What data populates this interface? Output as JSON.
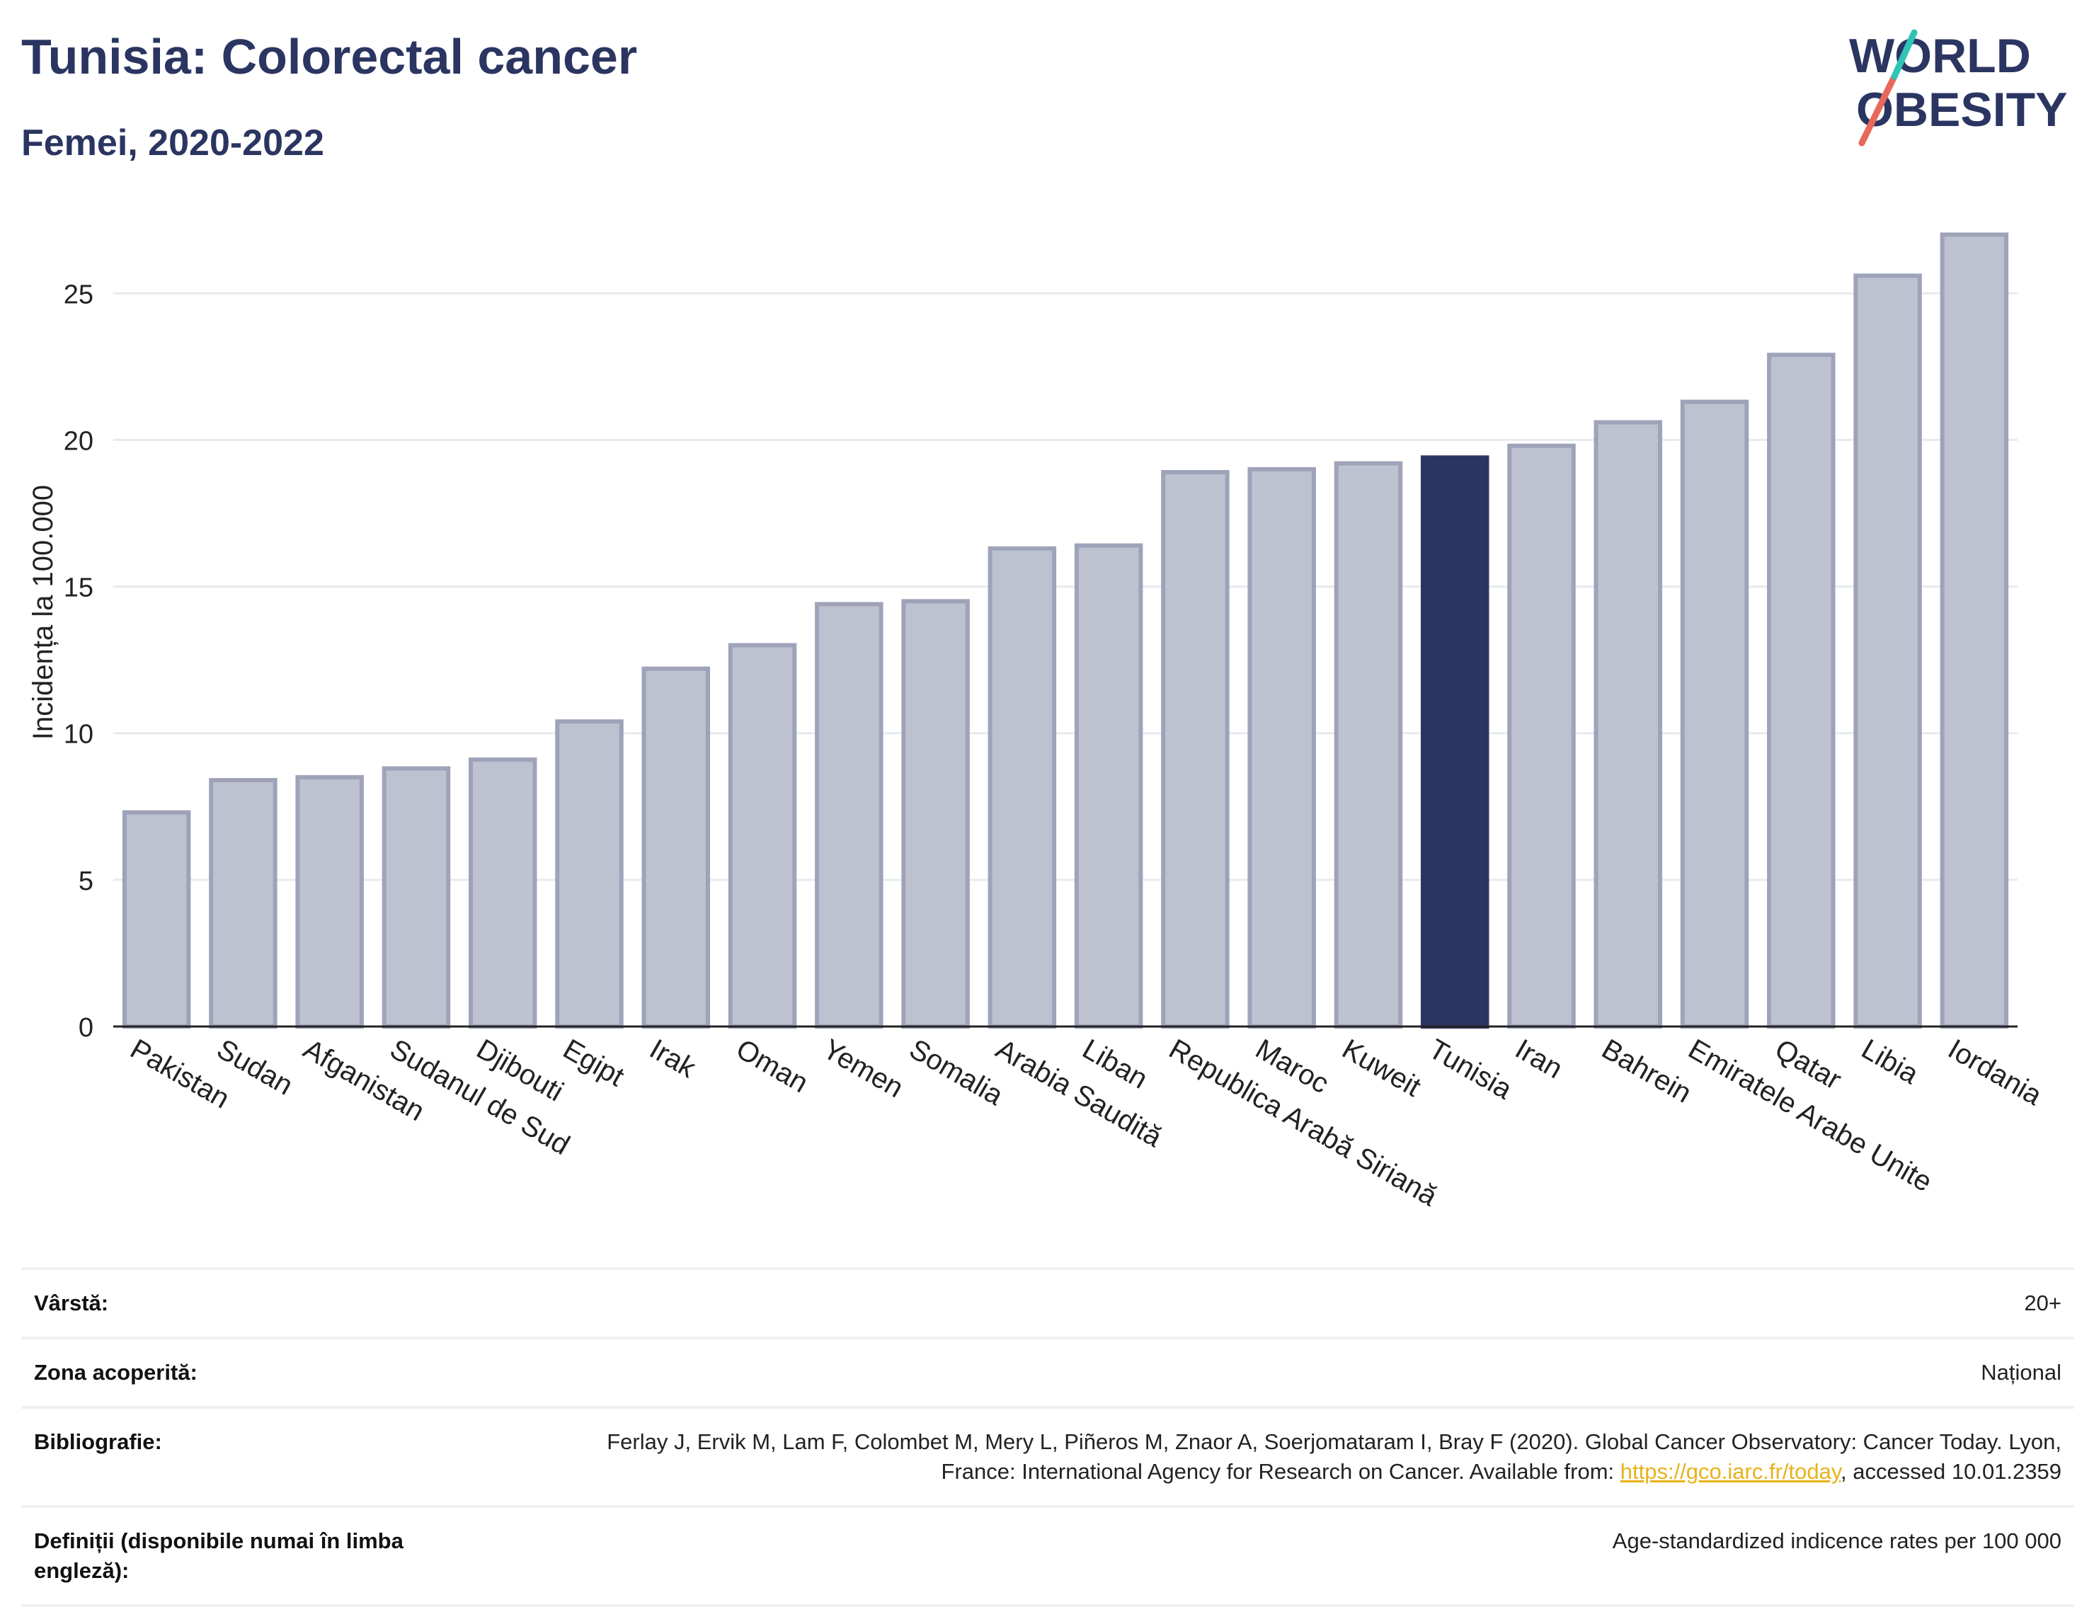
{
  "header": {
    "title": "Tunisia: Colorectal cancer",
    "subtitle": "Femei, 2020-2022"
  },
  "logo": {
    "line1": "WORLD",
    "line2": "OBESITY",
    "colors": {
      "text": "#2b3561",
      "slash_red": "#e8685c",
      "slash_teal": "#2ec4b6"
    }
  },
  "chart_data": {
    "type": "bar",
    "ylabel": "Incidența la 100.000",
    "xlabel": "",
    "ylim": [
      0,
      28
    ],
    "yticks": [
      0,
      5,
      10,
      15,
      20,
      25
    ],
    "grid": true,
    "highlight": "Tunisia",
    "colors": {
      "bar": "#bec2d0",
      "bar_edge": "#9ea3b9",
      "highlight": "#2b3561",
      "grid": "#e8eaef",
      "axis": "#222222"
    },
    "categories": [
      "Pakistan",
      "Sudan",
      "Afganistan",
      "Sudanul de Sud",
      "Djibouti",
      "Egipt",
      "Irak",
      "Oman",
      "Yemen",
      "Somalia",
      "Arabia Saudită",
      "Liban",
      "Republica Arabă Siriană",
      "Maroc",
      "Kuweit",
      "Tunisia",
      "Iran",
      "Bahrein",
      "Emiratele Arabe Unite",
      "Qatar",
      "Libia",
      "Iordania"
    ],
    "values": [
      7.3,
      8.4,
      8.5,
      8.8,
      9.1,
      10.4,
      12.2,
      13.0,
      14.4,
      14.5,
      16.3,
      16.4,
      18.9,
      19.0,
      19.2,
      19.4,
      19.8,
      20.6,
      21.3,
      22.9,
      25.6,
      27.0
    ]
  },
  "info": {
    "rows": [
      {
        "label": "Vârstă:",
        "value": "20+"
      },
      {
        "label": "Zona acoperită:",
        "value": "Național"
      },
      {
        "label": "Bibliografie:",
        "value_before": "Ferlay J, Ervik M, Lam F, Colombet M, Mery L, Piñeros M, Znaor A, Soerjomataram I, Bray F (2020). Global Cancer Observatory: Cancer Today. Lyon, France: International Agency for Research on Cancer. Available from: ",
        "link": "https://gco.iarc.fr/today",
        "value_after": ", accessed 10.01.2359"
      },
      {
        "label": "Definiții (disponibile numai în limba engleză):",
        "value": "Age-standardized indicence rates per 100 000"
      }
    ]
  }
}
